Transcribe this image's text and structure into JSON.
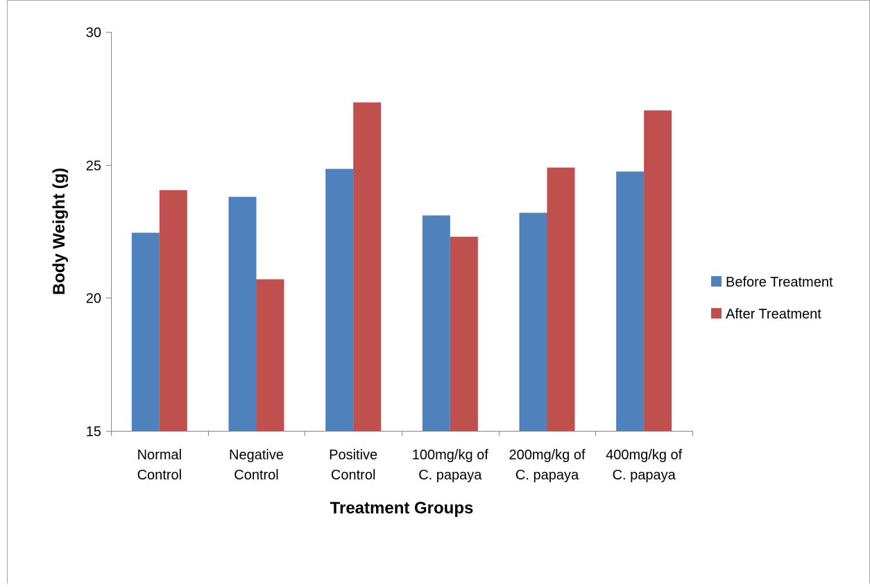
{
  "chart_data": {
    "type": "bar",
    "title": "",
    "xlabel": "Treatment Groups",
    "ylabel": "Body Weight (g)",
    "ylim": [
      15,
      30
    ],
    "yticks": [
      15,
      20,
      25,
      30
    ],
    "categories": [
      [
        "Normal",
        "Control"
      ],
      [
        "Negative",
        "Control"
      ],
      [
        "Positive",
        "Control"
      ],
      [
        "100mg/kg of",
        "C. papaya"
      ],
      [
        "200mg/kg of",
        "C. papaya"
      ],
      [
        "400mg/kg of",
        "C. papaya"
      ]
    ],
    "series": [
      {
        "name": "Before Treatment",
        "color": "#4F81BD",
        "values": [
          22.45,
          23.8,
          24.85,
          23.1,
          23.2,
          24.75
        ]
      },
      {
        "name": "After Treatment",
        "color": "#C0504D",
        "values": [
          24.05,
          20.7,
          27.35,
          22.3,
          24.9,
          27.05
        ]
      }
    ],
    "grid": false,
    "legend_position": "right"
  }
}
